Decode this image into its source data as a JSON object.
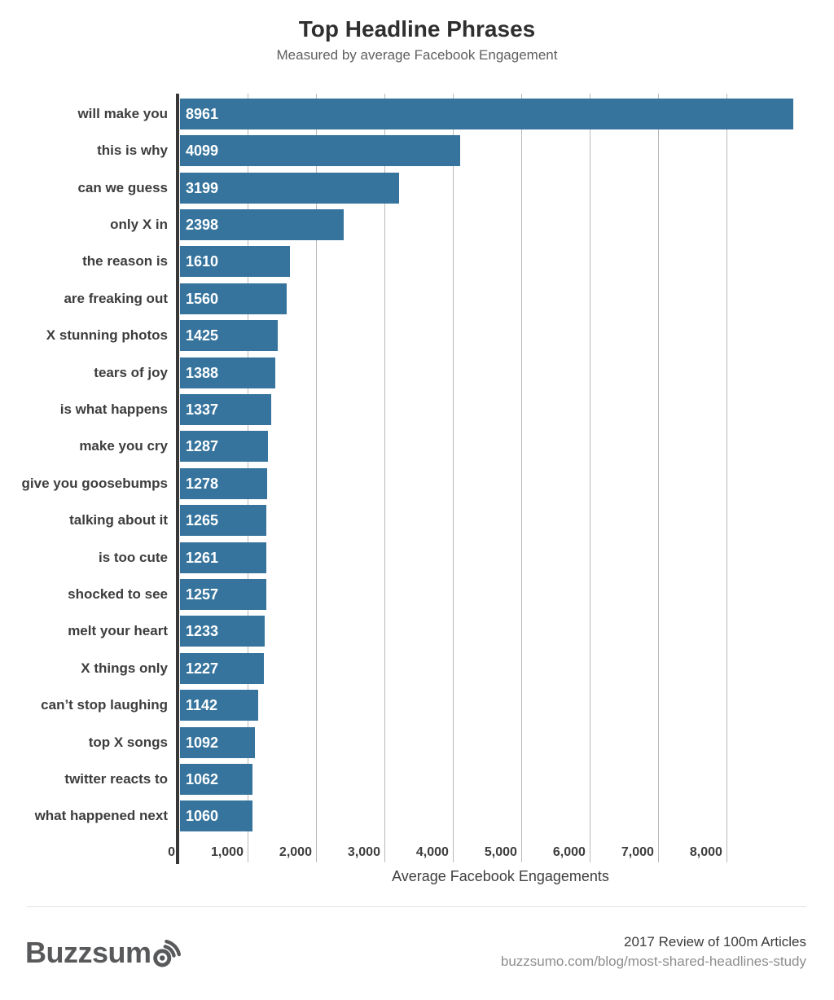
{
  "header": {
    "title": "Top Headline Phrases",
    "subtitle": "Measured by average Facebook Engagement"
  },
  "chart_data": {
    "type": "bar",
    "orientation": "horizontal",
    "title": "Top Headline Phrases",
    "subtitle": "Measured by average Facebook Engagement",
    "categories": [
      "will make you",
      "this is why",
      "can we guess",
      "only X in",
      "the reason is",
      "are freaking out",
      "X stunning photos",
      "tears of joy",
      "is what happens",
      "make you cry",
      "give you goosebumps",
      "talking about it",
      "is too cute",
      "shocked to see",
      "melt your heart",
      "X things only",
      "can’t stop laughing",
      "top X songs",
      "twitter reacts to",
      "what happened next"
    ],
    "values": [
      8961,
      4099,
      3199,
      2398,
      1610,
      1560,
      1425,
      1388,
      1337,
      1287,
      1278,
      1265,
      1261,
      1257,
      1233,
      1227,
      1142,
      1092,
      1062,
      1060
    ],
    "xlabel": "Average Facebook Engagements",
    "ylabel": "",
    "xlim": [
      0,
      9370
    ],
    "xticks": {
      "values": [
        0,
        1000,
        2000,
        3000,
        4000,
        5000,
        6000,
        7000,
        8000
      ],
      "labels": [
        "0",
        "1,000",
        "2,000",
        "3,000",
        "4,000",
        "5,000",
        "6,000",
        "7,000",
        "8,000"
      ]
    },
    "grid": true,
    "legend": false,
    "bar_color": "#36749D",
    "value_label_color": "#ffffff",
    "axis_color": "#383838",
    "grid_color": "#b9b9b9"
  },
  "footer": {
    "logo_text": "Buzzsumo",
    "logo_icon": "broadcast-icon",
    "line1": "2017 Review of 100m Articles",
    "line2": "buzzsumo.com/blog/most-shared-headlines-study"
  }
}
